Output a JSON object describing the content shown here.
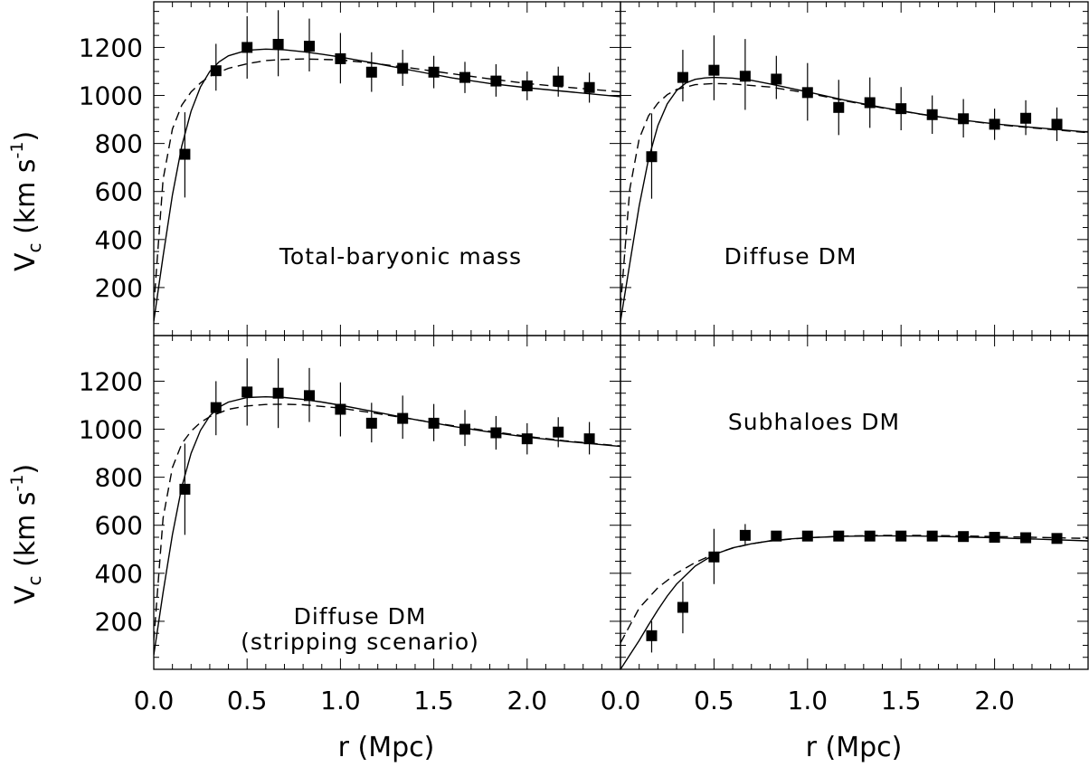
{
  "figure": {
    "ylabel_main": "V",
    "ylabel_sub": "c",
    "ylabel_units": " (km s",
    "ylabel_exp": "-1",
    "ylabel_close": ")",
    "xlabel": "r (Mpc)"
  },
  "chart_data": [
    {
      "type": "scatter",
      "panel": "top-left",
      "label_lines": [
        "Total-baryonic mass"
      ],
      "xlim": [
        0.0,
        2.5
      ],
      "ylim": [
        0,
        1390
      ],
      "x_ticks": [],
      "y_ticks": [
        "200",
        "400",
        "600",
        "800",
        "1000",
        "1200"
      ],
      "x": [
        0.1667,
        0.3333,
        0.5,
        0.6667,
        0.8333,
        1.0,
        1.1667,
        1.3333,
        1.5,
        1.6667,
        1.8333,
        2.0,
        2.1667,
        2.3333
      ],
      "y": [
        755,
        1103,
        1200,
        1213,
        1205,
        1153,
        1097,
        1113,
        1097,
        1075,
        1060,
        1040,
        1060,
        1033
      ],
      "err_low": [
        575,
        1020,
        1070,
        1080,
        1100,
        1050,
        1015,
        1040,
        1030,
        1010,
        995,
        980,
        995,
        970
      ],
      "err_high": [
        930,
        1215,
        1330,
        1355,
        1320,
        1260,
        1180,
        1190,
        1165,
        1140,
        1130,
        1100,
        1120,
        1095
      ],
      "series": [
        {
          "style": "solid",
          "x": [
            0.0,
            0.05,
            0.1,
            0.15,
            0.2,
            0.25,
            0.3,
            0.35,
            0.4,
            0.5,
            0.6,
            0.7,
            0.8,
            0.9,
            1.0,
            1.2,
            1.4,
            1.6,
            1.8,
            2.0,
            2.2,
            2.5
          ],
          "y": [
            60,
            330,
            585,
            790,
            935,
            1035,
            1100,
            1140,
            1165,
            1188,
            1193,
            1190,
            1182,
            1172,
            1160,
            1132,
            1102,
            1073,
            1050,
            1032,
            1017,
            995
          ]
        },
        {
          "style": "dashed",
          "x": [
            0.0,
            0.05,
            0.1,
            0.15,
            0.2,
            0.25,
            0.3,
            0.4,
            0.5,
            0.6,
            0.7,
            0.8,
            1.0,
            1.2,
            1.4,
            1.6,
            1.8,
            2.0,
            2.2,
            2.5
          ],
          "y": [
            120,
            650,
            860,
            960,
            1015,
            1052,
            1080,
            1113,
            1132,
            1145,
            1150,
            1152,
            1148,
            1132,
            1112,
            1090,
            1069,
            1050,
            1035,
            1015
          ]
        }
      ]
    },
    {
      "type": "scatter",
      "panel": "top-right",
      "label_lines": [
        "Diffuse DM"
      ],
      "xlim": [
        0.0,
        2.5
      ],
      "ylim": [
        0,
        1390
      ],
      "x_ticks": [],
      "y_ticks": [],
      "x": [
        0.1667,
        0.3333,
        0.5,
        0.6667,
        0.8333,
        1.0,
        1.1667,
        1.3333,
        1.5,
        1.6667,
        1.8333,
        2.0,
        2.1667,
        2.3333
      ],
      "y": [
        745,
        1075,
        1105,
        1080,
        1068,
        1012,
        950,
        970,
        945,
        920,
        903,
        880,
        905,
        880
      ],
      "err_low": [
        570,
        975,
        980,
        940,
        985,
        895,
        835,
        865,
        855,
        840,
        825,
        815,
        835,
        810
      ],
      "err_high": [
        925,
        1190,
        1250,
        1235,
        1165,
        1135,
        1065,
        1075,
        1035,
        1000,
        985,
        945,
        980,
        950
      ],
      "series": [
        {
          "style": "solid",
          "x": [
            0.0,
            0.05,
            0.1,
            0.15,
            0.2,
            0.25,
            0.3,
            0.35,
            0.4,
            0.45,
            0.5,
            0.6,
            0.7,
            0.8,
            1.0,
            1.2,
            1.4,
            1.6,
            1.8,
            2.0,
            2.2,
            2.5
          ],
          "y": [
            60,
            300,
            540,
            735,
            875,
            965,
            1020,
            1052,
            1067,
            1073,
            1075,
            1072,
            1063,
            1048,
            1015,
            980,
            950,
            923,
            900,
            882,
            867,
            847
          ]
        },
        {
          "style": "dashed",
          "x": [
            0.0,
            0.05,
            0.1,
            0.15,
            0.2,
            0.25,
            0.3,
            0.4,
            0.5,
            0.6,
            0.8,
            1.0,
            1.2,
            1.4,
            1.6,
            1.8,
            2.0,
            2.2,
            2.5
          ],
          "y": [
            120,
            610,
            820,
            915,
            968,
            1003,
            1025,
            1045,
            1050,
            1048,
            1035,
            1010,
            978,
            948,
            922,
            900,
            880,
            865,
            845
          ]
        }
      ]
    },
    {
      "type": "scatter",
      "panel": "bottom-left",
      "label_lines": [
        "Diffuse DM",
        "(stripping scenario)"
      ],
      "xlim": [
        0.0,
        2.5
      ],
      "ylim": [
        0,
        1390
      ],
      "x_ticks": [
        "0.0",
        "0.5",
        "1.0",
        "1.5",
        "2.0"
      ],
      "y_ticks": [
        "200",
        "400",
        "600",
        "800",
        "1000",
        "1200"
      ],
      "x": [
        0.1667,
        0.3333,
        0.5,
        0.6667,
        0.8333,
        1.0,
        1.1667,
        1.3333,
        1.5,
        1.6667,
        1.8333,
        2.0,
        2.1667,
        2.3333
      ],
      "y": [
        750,
        1090,
        1155,
        1150,
        1140,
        1083,
        1025,
        1045,
        1025,
        1000,
        985,
        960,
        988,
        960
      ],
      "err_low": [
        560,
        975,
        1015,
        1005,
        1030,
        970,
        945,
        960,
        950,
        930,
        915,
        895,
        925,
        895
      ],
      "err_high": [
        940,
        1200,
        1295,
        1295,
        1255,
        1195,
        1110,
        1140,
        1105,
        1080,
        1055,
        1025,
        1050,
        1030
      ],
      "series": [
        {
          "style": "solid",
          "x": [
            0.0,
            0.05,
            0.1,
            0.15,
            0.2,
            0.25,
            0.3,
            0.35,
            0.4,
            0.5,
            0.6,
            0.7,
            0.8,
            0.9,
            1.0,
            1.2,
            1.4,
            1.6,
            1.8,
            2.0,
            2.2,
            2.5
          ],
          "y": [
            60,
            320,
            560,
            760,
            900,
            995,
            1055,
            1092,
            1113,
            1132,
            1135,
            1132,
            1124,
            1113,
            1100,
            1070,
            1040,
            1012,
            988,
            967,
            950,
            928
          ]
        },
        {
          "style": "dashed",
          "x": [
            0.0,
            0.05,
            0.1,
            0.15,
            0.2,
            0.25,
            0.3,
            0.4,
            0.5,
            0.6,
            0.7,
            0.8,
            1.0,
            1.2,
            1.4,
            1.6,
            1.8,
            2.0,
            2.2,
            2.5
          ],
          "y": [
            120,
            630,
            840,
            940,
            992,
            1028,
            1052,
            1083,
            1097,
            1103,
            1104,
            1102,
            1088,
            1065,
            1040,
            1015,
            992,
            970,
            952,
            930
          ]
        }
      ]
    },
    {
      "type": "scatter",
      "panel": "bottom-right",
      "label_lines": [
        "Subhaloes DM"
      ],
      "xlim": [
        0.0,
        2.5
      ],
      "ylim": [
        0,
        1390
      ],
      "x_ticks": [
        "0.0",
        "0.5",
        "1.0",
        "1.5",
        "2.0"
      ],
      "y_ticks": [],
      "x": [
        0.1667,
        0.3333,
        0.5,
        0.6667,
        0.8333,
        1.0,
        1.1667,
        1.3333,
        1.5,
        1.6667,
        1.8333,
        2.0,
        2.1667,
        2.3333
      ],
      "y": [
        140,
        258,
        468,
        558,
        555,
        555,
        555,
        555,
        555,
        555,
        553,
        550,
        548,
        545
      ],
      "err_low": [
        70,
        150,
        355,
        520,
        540,
        540,
        545,
        545,
        545,
        545,
        540,
        540,
        535,
        535
      ],
      "err_high": [
        200,
        365,
        585,
        605,
        575,
        570,
        568,
        568,
        568,
        565,
        565,
        560,
        560,
        555
      ],
      "series": [
        {
          "style": "solid",
          "x": [
            0.0,
            0.05,
            0.1,
            0.15,
            0.2,
            0.25,
            0.3,
            0.4,
            0.5,
            0.6,
            0.7,
            0.8,
            0.9,
            1.0,
            1.2,
            1.4,
            1.6,
            1.8,
            2.0,
            2.2,
            2.5
          ],
          "y": [
            0,
            60,
            120,
            185,
            248,
            305,
            355,
            430,
            478,
            506,
            523,
            535,
            543,
            548,
            554,
            556,
            555,
            552,
            548,
            543,
            535
          ]
        },
        {
          "style": "dashed",
          "x": [
            0.0,
            0.1,
            0.2,
            0.3,
            0.4,
            0.5,
            0.6,
            0.7,
            0.8,
            1.0,
            1.2,
            1.4,
            1.6,
            1.8,
            2.0,
            2.2,
            2.5
          ],
          "y": [
            110,
            255,
            340,
            400,
            445,
            480,
            505,
            523,
            535,
            548,
            555,
            558,
            558,
            556,
            553,
            550,
            545
          ]
        }
      ]
    }
  ]
}
